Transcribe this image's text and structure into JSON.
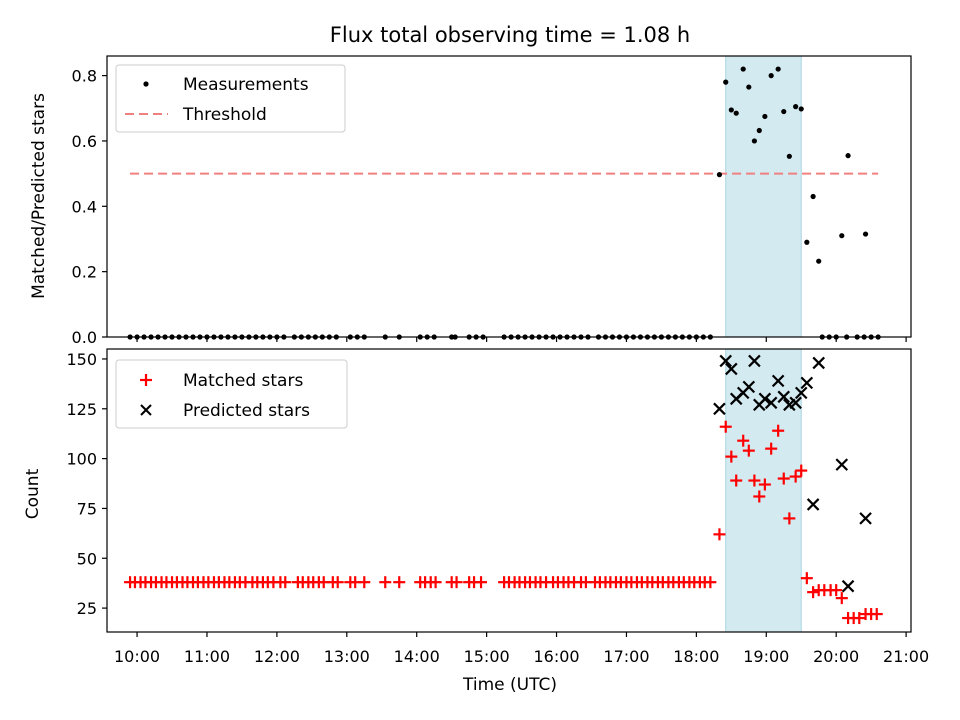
{
  "chart_data": [
    {
      "type": "scatter",
      "title": "Flux total observing time = 1.08 h",
      "xlabel": "",
      "ylabel": "Matched/Predicted stars",
      "xlim": [
        9.57,
        21.07
      ],
      "ylim": [
        0.0,
        0.86
      ],
      "yticks": [
        "0.0",
        "0.2",
        "0.4",
        "0.6",
        "0.8"
      ],
      "highlight_span": {
        "x_start": 18.42,
        "x_end": 19.5,
        "color": "#d3eaf1"
      },
      "legend": {
        "position": "top-left",
        "entries": [
          "Measurements",
          "Threshold"
        ]
      },
      "threshold": {
        "name": "Threshold",
        "y": 0.5,
        "x_start": 9.9,
        "x_end": 20.6,
        "color": "#f08080"
      },
      "series": [
        {
          "name": "Measurements",
          "marker": "dot",
          "color": "#000000",
          "x_zero": [
            9.9,
            10.0,
            10.1,
            10.2,
            10.3,
            10.4,
            10.5,
            10.6,
            10.7,
            10.8,
            10.9,
            11.0,
            11.1,
            11.2,
            11.3,
            11.4,
            11.5,
            11.6,
            11.7,
            11.8,
            11.9,
            12.0,
            12.1,
            12.25,
            12.35,
            12.45,
            12.55,
            12.65,
            12.75,
            12.85,
            13.05,
            13.15,
            13.25,
            13.55,
            13.75,
            14.05,
            14.15,
            14.25,
            14.5,
            14.55,
            14.75,
            14.85,
            14.95,
            15.25,
            15.35,
            15.45,
            15.55,
            15.65,
            15.75,
            15.85,
            15.95,
            16.05,
            16.15,
            16.25,
            16.35,
            16.45,
            16.6,
            16.7,
            16.8,
            16.9,
            17.0,
            17.1,
            17.2,
            17.3,
            17.4,
            17.5,
            17.6,
            17.7,
            17.8,
            17.9,
            18.0,
            18.1,
            18.2,
            19.8,
            19.9,
            20.0,
            20.15,
            20.3,
            20.4,
            20.5,
            20.6
          ],
          "points": [
            [
              18.33,
              0.497
            ],
            [
              18.42,
              0.78
            ],
            [
              18.5,
              0.695
            ],
            [
              18.57,
              0.685
            ],
            [
              18.67,
              0.82
            ],
            [
              18.75,
              0.765
            ],
            [
              18.83,
              0.6
            ],
            [
              18.9,
              0.632
            ],
            [
              18.98,
              0.675
            ],
            [
              19.07,
              0.8
            ],
            [
              19.17,
              0.82
            ],
            [
              19.25,
              0.69
            ],
            [
              19.33,
              0.553
            ],
            [
              19.42,
              0.705
            ],
            [
              19.5,
              0.698
            ],
            [
              19.58,
              0.29
            ],
            [
              19.67,
              0.43
            ],
            [
              19.75,
              0.232
            ],
            [
              20.08,
              0.31
            ],
            [
              20.17,
              0.555
            ],
            [
              20.42,
              0.315
            ]
          ]
        }
      ]
    },
    {
      "type": "scatter",
      "title": "",
      "xlabel": "Time (UTC)",
      "ylabel": "Count",
      "xlim": [
        9.57,
        21.07
      ],
      "ylim": [
        13,
        155
      ],
      "xticks": [
        "10:00",
        "11:00",
        "12:00",
        "13:00",
        "14:00",
        "15:00",
        "16:00",
        "17:00",
        "18:00",
        "19:00",
        "20:00",
        "21:00"
      ],
      "yticks": [
        "25",
        "50",
        "75",
        "100",
        "125",
        "150"
      ],
      "highlight_span": {
        "x_start": 18.42,
        "x_end": 19.5,
        "color": "#d3eaf1"
      },
      "legend": {
        "position": "top-left",
        "entries": [
          "Matched stars",
          "Predicted stars"
        ]
      },
      "series": [
        {
          "name": "Matched stars",
          "marker": "plus",
          "color": "#ff0000",
          "flat_value": 38,
          "flat_x": [
            9.9,
            9.97,
            10.05,
            10.12,
            10.2,
            10.27,
            10.35,
            10.42,
            10.5,
            10.57,
            10.65,
            10.72,
            10.8,
            10.87,
            10.95,
            11.02,
            11.1,
            11.17,
            11.25,
            11.32,
            11.4,
            11.47,
            11.55,
            11.65,
            11.72,
            11.8,
            11.87,
            11.95,
            12.05,
            12.12,
            12.3,
            12.37,
            12.45,
            12.52,
            12.6,
            12.67,
            12.8,
            12.87,
            13.05,
            13.12,
            13.25,
            13.55,
            13.75,
            14.05,
            14.12,
            14.2,
            14.27,
            14.5,
            14.57,
            14.75,
            14.82,
            14.92,
            15.25,
            15.32,
            15.4,
            15.47,
            15.55,
            15.62,
            15.7,
            15.77,
            15.85,
            15.95,
            16.02,
            16.1,
            16.17,
            16.25,
            16.35,
            16.42,
            16.55,
            16.62,
            16.7,
            16.77,
            16.85,
            16.92,
            17.0,
            17.07,
            17.15,
            17.22,
            17.3,
            17.37,
            17.45,
            17.52,
            17.6,
            17.67,
            17.75,
            17.82,
            17.9,
            17.97,
            18.05,
            18.12,
            18.2
          ],
          "points": [
            [
              18.33,
              62
            ],
            [
              18.42,
              116
            ],
            [
              18.5,
              101
            ],
            [
              18.57,
              89
            ],
            [
              18.67,
              109
            ],
            [
              18.75,
              104
            ],
            [
              18.83,
              89
            ],
            [
              18.9,
              81
            ],
            [
              18.98,
              87
            ],
            [
              19.07,
              105
            ],
            [
              19.17,
              114
            ],
            [
              19.25,
              90
            ],
            [
              19.33,
              70
            ],
            [
              19.42,
              91
            ],
            [
              19.5,
              94
            ],
            [
              19.58,
              40
            ],
            [
              19.67,
              33
            ],
            [
              19.75,
              34
            ],
            [
              19.83,
              34
            ],
            [
              19.92,
              34
            ],
            [
              20.0,
              34
            ],
            [
              20.08,
              30
            ],
            [
              20.17,
              20
            ],
            [
              20.25,
              20
            ],
            [
              20.33,
              20
            ],
            [
              20.42,
              22
            ],
            [
              20.5,
              22
            ],
            [
              20.58,
              22
            ]
          ]
        },
        {
          "name": "Predicted stars",
          "marker": "x",
          "color": "#000000",
          "points": [
            [
              18.33,
              125
            ],
            [
              18.42,
              149
            ],
            [
              18.5,
              145
            ],
            [
              18.57,
              130
            ],
            [
              18.67,
              133
            ],
            [
              18.75,
              136
            ],
            [
              18.83,
              149
            ],
            [
              18.9,
              127
            ],
            [
              18.98,
              130
            ],
            [
              19.07,
              128
            ],
            [
              19.17,
              139
            ],
            [
              19.25,
              131
            ],
            [
              19.33,
              127
            ],
            [
              19.42,
              128
            ],
            [
              19.5,
              133
            ],
            [
              19.58,
              138
            ],
            [
              19.67,
              77
            ],
            [
              19.75,
              148
            ],
            [
              20.08,
              97
            ],
            [
              20.17,
              36
            ],
            [
              20.42,
              70
            ]
          ]
        }
      ]
    }
  ]
}
